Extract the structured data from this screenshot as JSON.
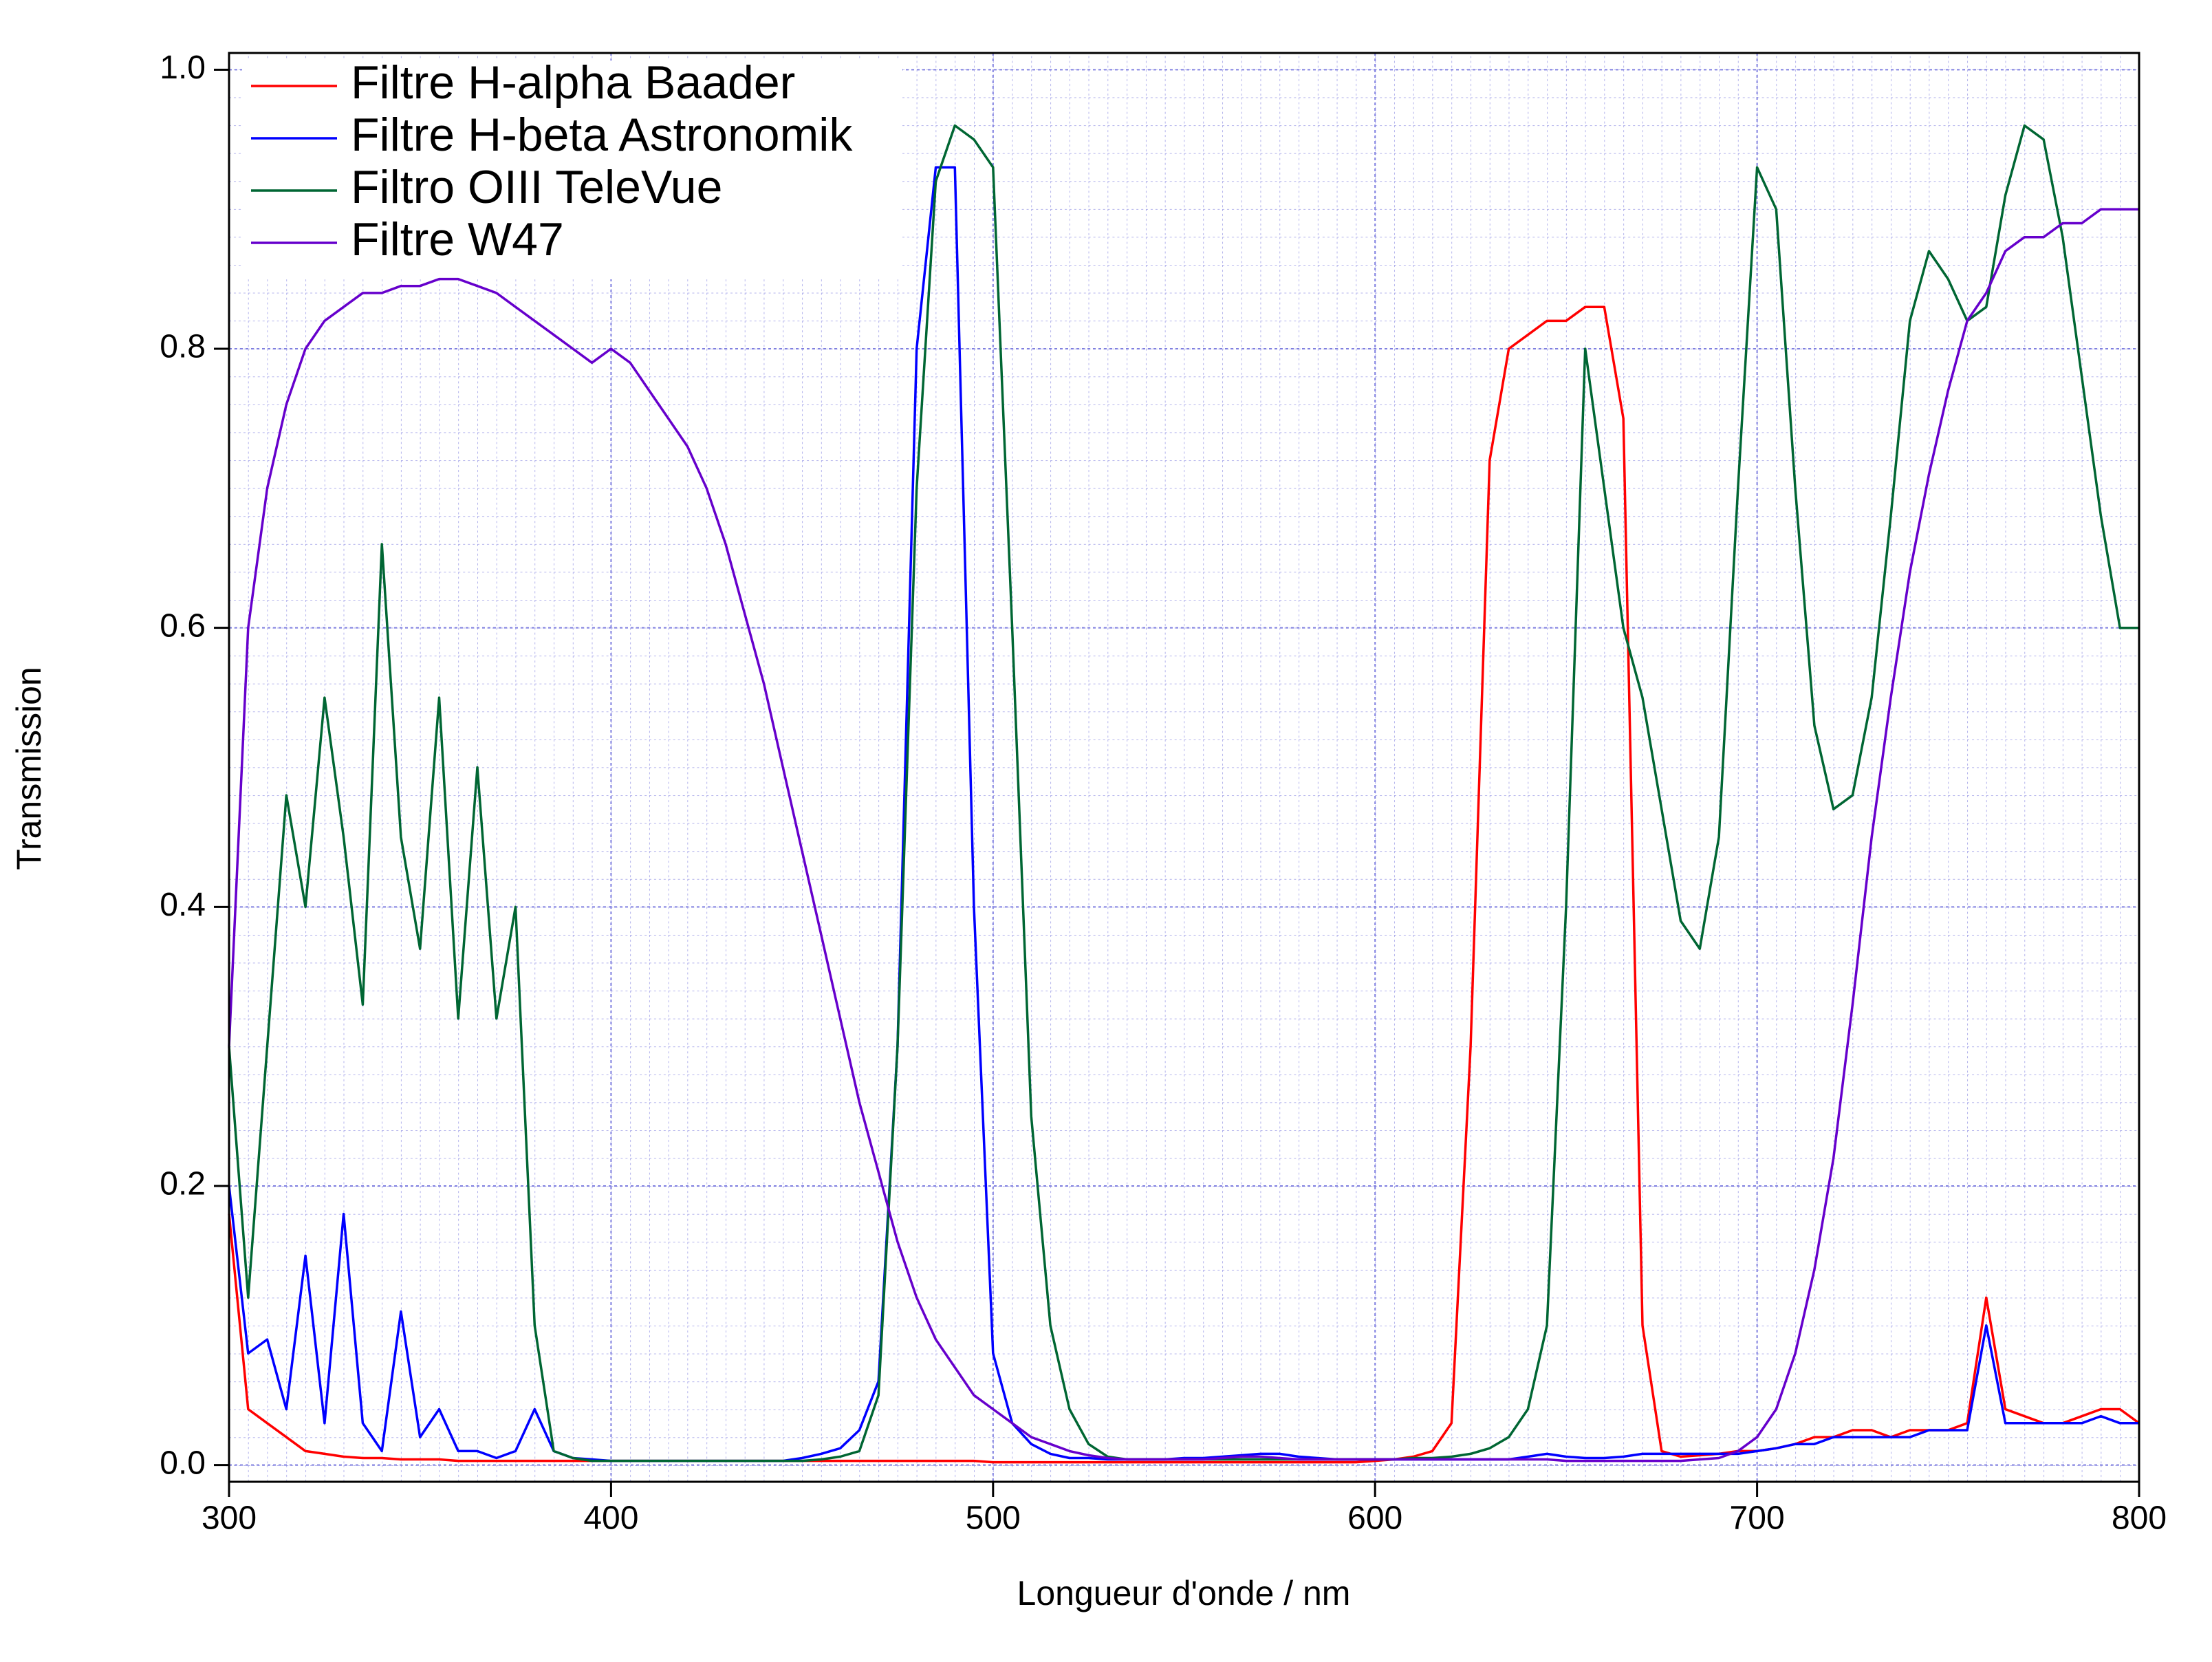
{
  "chart_data": {
    "type": "line",
    "x_label": "Longueur d'onde / nm",
    "y_label": "Transmission",
    "xlim": [
      300,
      800
    ],
    "ylim": [
      -0.012,
      1.012
    ],
    "xticks": [
      300,
      400,
      500,
      600,
      700,
      800
    ],
    "yticks": [
      {
        "value": 0,
        "label": "0.0"
      },
      0.2,
      0.4,
      0.6,
      0.8,
      {
        "value": 1,
        "label": "1.0"
      }
    ],
    "grid": true,
    "legend": "top-left",
    "x": [
      300,
      305,
      310,
      315,
      320,
      325,
      330,
      335,
      340,
      345,
      350,
      355,
      360,
      365,
      370,
      375,
      380,
      385,
      390,
      395,
      400,
      405,
      410,
      415,
      420,
      425,
      430,
      435,
      440,
      445,
      450,
      455,
      460,
      465,
      470,
      475,
      480,
      485,
      490,
      495,
      500,
      505,
      510,
      515,
      520,
      525,
      530,
      535,
      540,
      545,
      550,
      555,
      560,
      565,
      570,
      575,
      580,
      585,
      590,
      595,
      600,
      605,
      610,
      615,
      620,
      625,
      630,
      635,
      640,
      645,
      650,
      655,
      660,
      665,
      670,
      675,
      680,
      685,
      690,
      695,
      700,
      705,
      710,
      715,
      720,
      725,
      730,
      735,
      740,
      745,
      750,
      755,
      760,
      765,
      770,
      775,
      780,
      785,
      790,
      795,
      800
    ],
    "series": [
      {
        "name": "Filtre H-alpha Baader",
        "color": "#ff0000",
        "values": [
          0.18,
          0.04,
          0.03,
          0.02,
          0.01,
          0.008,
          0.006,
          0.005,
          0.005,
          0.004,
          0.004,
          0.004,
          0.003,
          0.003,
          0.003,
          0.003,
          0.003,
          0.003,
          0.003,
          0.003,
          0.003,
          0.003,
          0.003,
          0.003,
          0.003,
          0.003,
          0.003,
          0.003,
          0.003,
          0.003,
          0.003,
          0.003,
          0.003,
          0.003,
          0.003,
          0.003,
          0.003,
          0.003,
          0.003,
          0.003,
          0.002,
          0.002,
          0.002,
          0.002,
          0.002,
          0.002,
          0.002,
          0.002,
          0.002,
          0.002,
          0.002,
          0.002,
          0.002,
          0.002,
          0.002,
          0.002,
          0.002,
          0.002,
          0.002,
          0.002,
          0.003,
          0.004,
          0.006,
          0.01,
          0.03,
          0.3,
          0.72,
          0.8,
          0.81,
          0.82,
          0.82,
          0.83,
          0.83,
          0.75,
          0.1,
          0.01,
          0.006,
          0.007,
          0.008,
          0.01,
          0.01,
          0.012,
          0.015,
          0.02,
          0.02,
          0.025,
          0.025,
          0.02,
          0.025,
          0.025,
          0.025,
          0.03,
          0.12,
          0.04,
          0.035,
          0.03,
          0.03,
          0.035,
          0.04,
          0.04,
          0.03
        ]
      },
      {
        "name": "Filtre H-beta Astronomik",
        "color": "#0000ff",
        "values": [
          0.2,
          0.08,
          0.09,
          0.04,
          0.15,
          0.03,
          0.18,
          0.03,
          0.01,
          0.11,
          0.02,
          0.04,
          0.01,
          0.01,
          0.005,
          0.01,
          0.04,
          0.01,
          0.005,
          0.004,
          0.003,
          0.003,
          0.003,
          0.003,
          0.003,
          0.003,
          0.003,
          0.003,
          0.003,
          0.003,
          0.005,
          0.008,
          0.012,
          0.025,
          0.06,
          0.3,
          0.8,
          0.93,
          0.93,
          0.4,
          0.08,
          0.03,
          0.015,
          0.008,
          0.005,
          0.005,
          0.004,
          0.004,
          0.004,
          0.004,
          0.005,
          0.005,
          0.006,
          0.007,
          0.008,
          0.008,
          0.006,
          0.005,
          0.004,
          0.004,
          0.004,
          0.004,
          0.004,
          0.004,
          0.004,
          0.004,
          0.004,
          0.004,
          0.006,
          0.008,
          0.006,
          0.005,
          0.005,
          0.006,
          0.008,
          0.008,
          0.008,
          0.008,
          0.008,
          0.008,
          0.01,
          0.012,
          0.015,
          0.015,
          0.02,
          0.02,
          0.02,
          0.02,
          0.02,
          0.025,
          0.025,
          0.025,
          0.1,
          0.03,
          0.03,
          0.03,
          0.03,
          0.03,
          0.035,
          0.03,
          0.03
        ]
      },
      {
        "name": "Filtro OIII TeleVue",
        "color": "#006633",
        "values": [
          0.3,
          0.12,
          0.3,
          0.48,
          0.4,
          0.55,
          0.45,
          0.33,
          0.66,
          0.45,
          0.37,
          0.55,
          0.32,
          0.5,
          0.32,
          0.4,
          0.1,
          0.01,
          0.005,
          0.003,
          0.003,
          0.003,
          0.003,
          0.003,
          0.003,
          0.003,
          0.003,
          0.003,
          0.003,
          0.003,
          0.003,
          0.004,
          0.006,
          0.01,
          0.05,
          0.3,
          0.7,
          0.92,
          0.96,
          0.95,
          0.93,
          0.6,
          0.25,
          0.1,
          0.04,
          0.015,
          0.006,
          0.004,
          0.004,
          0.004,
          0.004,
          0.004,
          0.004,
          0.004,
          0.004,
          0.004,
          0.004,
          0.004,
          0.004,
          0.004,
          0.004,
          0.004,
          0.005,
          0.005,
          0.006,
          0.008,
          0.012,
          0.02,
          0.04,
          0.1,
          0.4,
          0.8,
          0.7,
          0.6,
          0.55,
          0.47,
          0.39,
          0.37,
          0.45,
          0.7,
          0.93,
          0.9,
          0.7,
          0.53,
          0.47,
          0.48,
          0.55,
          0.68,
          0.82,
          0.87,
          0.85,
          0.82,
          0.83,
          0.91,
          0.96,
          0.95,
          0.88,
          0.78,
          0.68,
          0.6,
          0.6
        ]
      },
      {
        "name": "Filtre W47",
        "color": "#6600cc",
        "values": [
          0.3,
          0.6,
          0.7,
          0.76,
          0.8,
          0.82,
          0.83,
          0.84,
          0.84,
          0.845,
          0.845,
          0.85,
          0.85,
          0.845,
          0.84,
          0.83,
          0.82,
          0.81,
          0.8,
          0.79,
          0.8,
          0.79,
          0.77,
          0.75,
          0.73,
          0.7,
          0.66,
          0.61,
          0.56,
          0.5,
          0.44,
          0.38,
          0.32,
          0.26,
          0.21,
          0.16,
          0.12,
          0.09,
          0.07,
          0.05,
          0.04,
          0.03,
          0.02,
          0.015,
          0.01,
          0.007,
          0.005,
          0.004,
          0.004,
          0.004,
          0.004,
          0.004,
          0.005,
          0.006,
          0.006,
          0.005,
          0.004,
          0.004,
          0.004,
          0.004,
          0.004,
          0.004,
          0.004,
          0.004,
          0.004,
          0.004,
          0.004,
          0.004,
          0.004,
          0.004,
          0.003,
          0.003,
          0.003,
          0.003,
          0.003,
          0.003,
          0.003,
          0.004,
          0.005,
          0.01,
          0.02,
          0.04,
          0.08,
          0.14,
          0.22,
          0.33,
          0.45,
          0.55,
          0.64,
          0.71,
          0.77,
          0.82,
          0.84,
          0.87,
          0.88,
          0.88,
          0.89,
          0.89,
          0.9,
          0.9,
          0.9
        ]
      }
    ]
  }
}
